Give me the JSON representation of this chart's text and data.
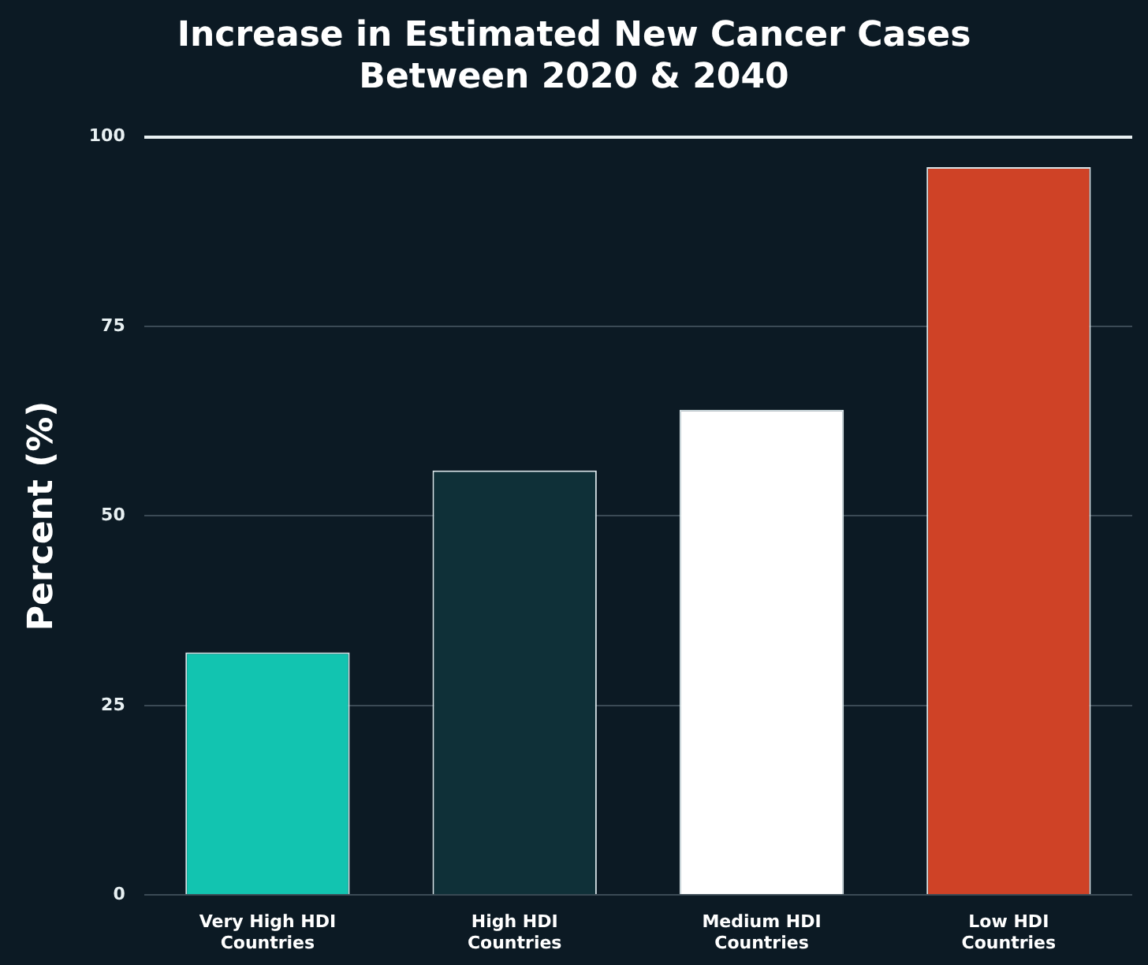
{
  "chart_data": {
    "type": "bar",
    "title": "Increase in Estimated New Cancer Cases\nBetween 2020 & 2040",
    "ylabel": "Percent (%)",
    "categories": [
      "Very High HDI\nCountries",
      "High HDI\nCountries",
      "Medium HDI\nCountries",
      "Low HDI\nCountries"
    ],
    "values": [
      32,
      56,
      64,
      96
    ],
    "colors": [
      "#12c4b0",
      "#0f3038",
      "#ffffff",
      "#cf4226"
    ],
    "ylim": [
      0,
      100
    ],
    "yticks": [
      0,
      25,
      50,
      75,
      100
    ],
    "grid": "y"
  }
}
